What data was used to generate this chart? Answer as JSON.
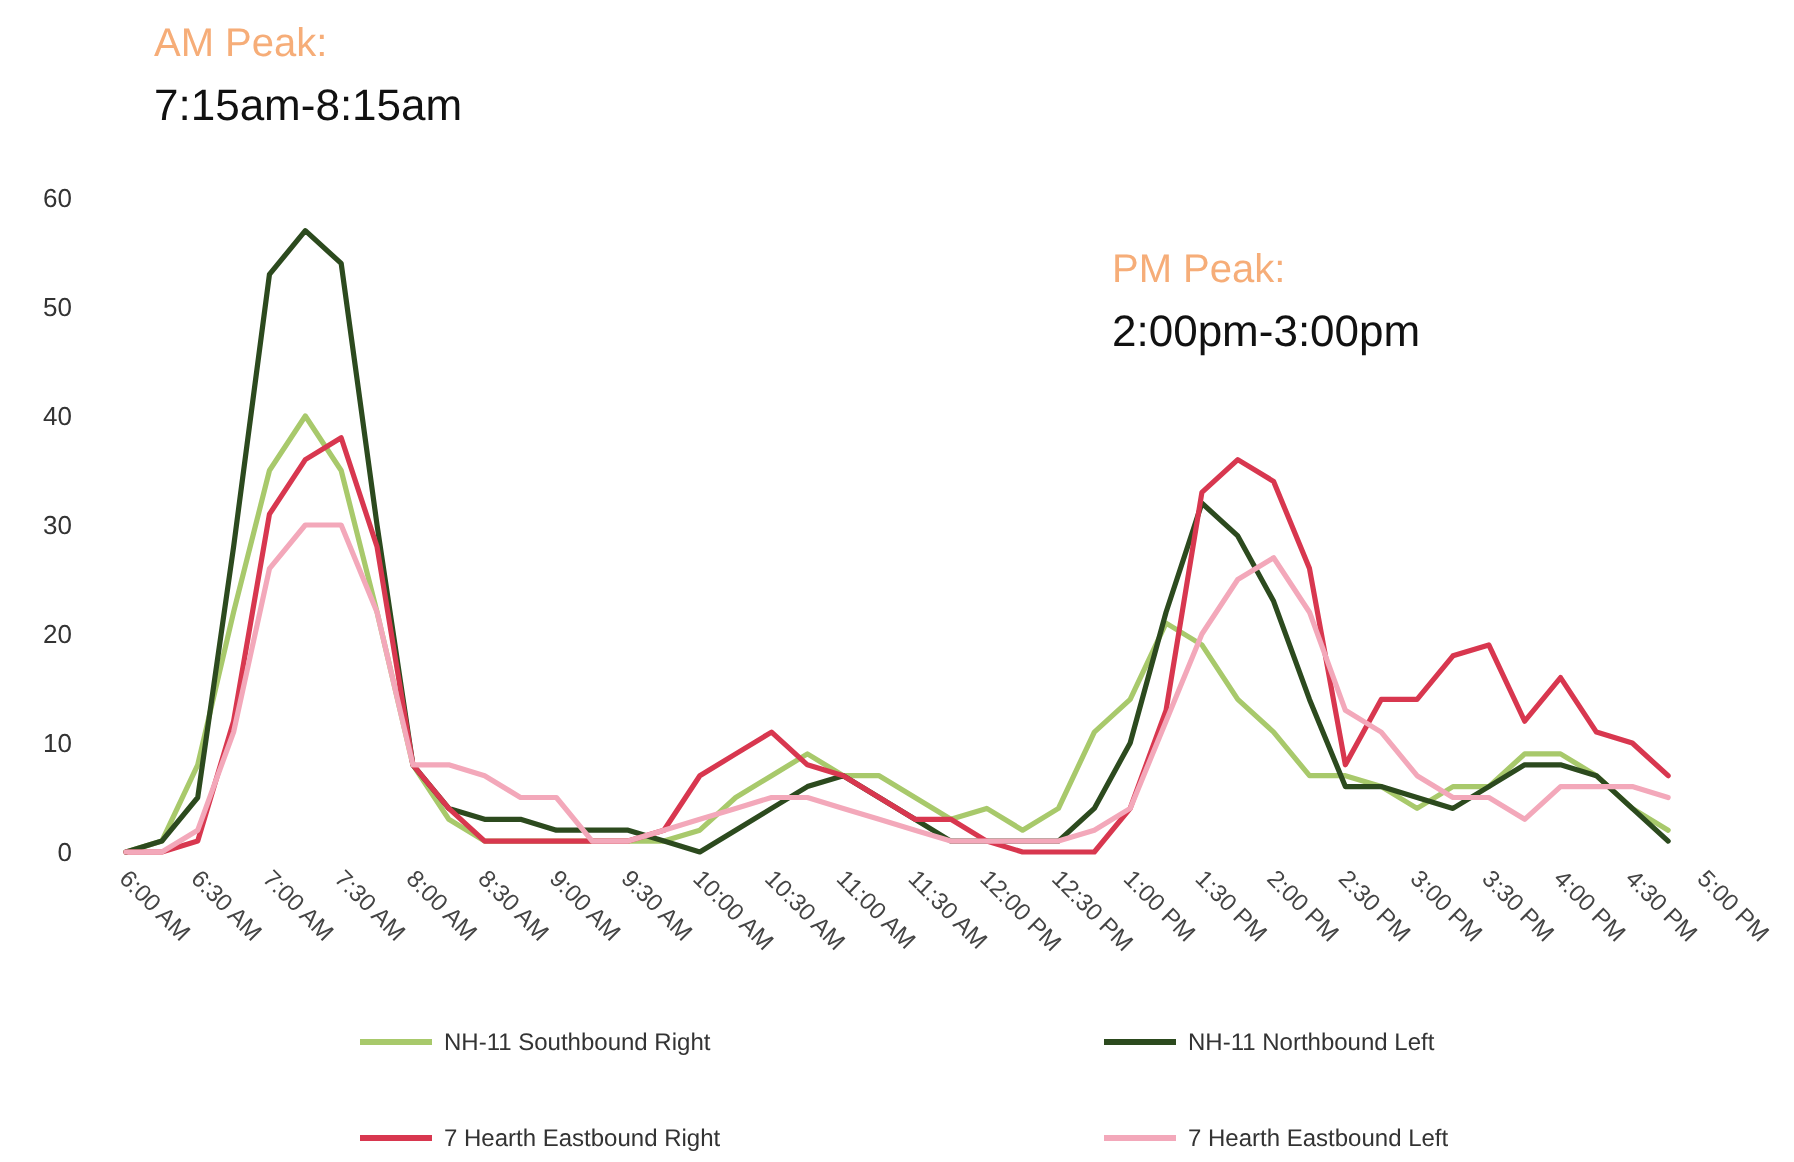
{
  "chart_data": {
    "type": "line",
    "annotations": [
      "AM Peak:",
      "7:15am-8:15am",
      "PM Peak:",
      "2:00pm-3:00pm"
    ],
    "x": [
      6,
      6.25,
      6.5,
      6.75,
      7,
      7.25,
      7.5,
      7.75,
      8,
      8.25,
      8.5,
      8.75,
      9,
      9.25,
      9.5,
      9.75,
      10,
      10.25,
      10.5,
      10.75,
      11,
      11.25,
      11.5,
      11.75,
      12,
      12.25,
      12.5,
      12.75,
      13,
      13.25,
      13.5,
      13.75,
      14,
      14.25,
      14.5,
      14.75,
      15,
      15.25,
      15.5,
      15.75,
      16,
      16.25,
      16.5,
      16.75
    ],
    "series": [
      {
        "name": "NH-11 Southbound Right",
        "color": "#a8c96b",
        "values": [
          0,
          1,
          8,
          22,
          35,
          40,
          35,
          22,
          8,
          3,
          1,
          1,
          1,
          1,
          1,
          1,
          2,
          5,
          7,
          9,
          7,
          7,
          5,
          3,
          4,
          2,
          4,
          11,
          14,
          21,
          19,
          14,
          11,
          7,
          7,
          6,
          4,
          6,
          6,
          9,
          9,
          7,
          4,
          2
        ]
      },
      {
        "name": "NH-11 Northbound Left",
        "color": "#2c4a1e",
        "values": [
          0,
          1,
          5,
          28,
          53,
          57,
          54,
          30,
          8,
          4,
          3,
          3,
          2,
          2,
          2,
          1,
          0,
          2,
          4,
          6,
          7,
          5,
          3,
          1,
          1,
          1,
          1,
          4,
          10,
          22,
          32,
          29,
          23,
          14,
          6,
          6,
          5,
          4,
          6,
          8,
          8,
          7,
          4,
          1
        ]
      },
      {
        "name": "7 Hearth Eastbound Right",
        "color": "#d8374f",
        "values": [
          0,
          0,
          1,
          12,
          31,
          36,
          38,
          28,
          8,
          4,
          1,
          1,
          1,
          1,
          1,
          2,
          7,
          9,
          11,
          8,
          7,
          5,
          3,
          3,
          1,
          0,
          0,
          0,
          4,
          13,
          33,
          36,
          34,
          26,
          8,
          14,
          14,
          18,
          19,
          12,
          16,
          11,
          10,
          7
        ]
      },
      {
        "name": "7 Hearth Eastbound Left",
        "color": "#f3a8ba",
        "values": [
          0,
          0,
          2,
          11,
          26,
          30,
          30,
          22,
          8,
          8,
          7,
          5,
          5,
          1,
          1,
          2,
          3,
          4,
          5,
          5,
          4,
          3,
          2,
          1,
          1,
          1,
          1,
          2,
          4,
          12,
          20,
          25,
          27,
          22,
          13,
          11,
          7,
          5,
          5,
          3,
          6,
          6,
          6,
          5
        ]
      }
    ],
    "xlim": [
      6,
      17
    ],
    "xticks": [
      {
        "value": 6,
        "label": "6:00 AM"
      },
      {
        "value": 6.5,
        "label": "6:30 AM"
      },
      {
        "value": 7,
        "label": "7:00 AM"
      },
      {
        "value": 7.5,
        "label": "7:30 AM"
      },
      {
        "value": 8,
        "label": "8:00 AM"
      },
      {
        "value": 8.5,
        "label": "8:30 AM"
      },
      {
        "value": 9,
        "label": "9:00 AM"
      },
      {
        "value": 9.5,
        "label": "9:30 AM"
      },
      {
        "value": 10,
        "label": "10:00 AM"
      },
      {
        "value": 10.5,
        "label": "10:30 AM"
      },
      {
        "value": 11,
        "label": "11:00 AM"
      },
      {
        "value": 11.5,
        "label": "11:30 AM"
      },
      {
        "value": 12,
        "label": "12:00 PM"
      },
      {
        "value": 12.5,
        "label": "12:30 PM"
      },
      {
        "value": 13,
        "label": "1:00 PM"
      },
      {
        "value": 13.5,
        "label": "1:30 PM"
      },
      {
        "value": 14,
        "label": "2:00 PM"
      },
      {
        "value": 14.5,
        "label": "2:30 PM"
      },
      {
        "value": 15,
        "label": "3:00 PM"
      },
      {
        "value": 15.5,
        "label": "3:30 PM"
      },
      {
        "value": 16,
        "label": "4:00 PM"
      },
      {
        "value": 16.5,
        "label": "4:30 PM"
      },
      {
        "value": 17,
        "label": "5:00 PM"
      }
    ],
    "ylim": [
      0,
      60
    ],
    "yticks": [
      0,
      10,
      20,
      30,
      40,
      50,
      60
    ],
    "grid": false,
    "legend": "bottom",
    "line_style": "solid",
    "marker": "none"
  }
}
